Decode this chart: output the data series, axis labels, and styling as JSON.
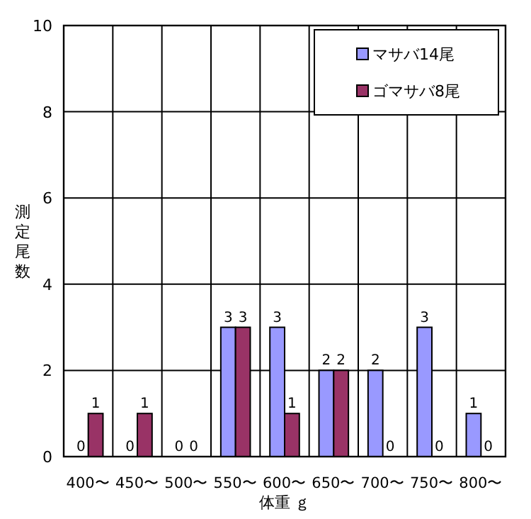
{
  "chart_data": {
    "type": "bar",
    "xlabel": "体重 ｇ",
    "ylabel": "測定尾数",
    "categories": [
      "400〜",
      "450〜",
      "500〜",
      "550〜",
      "600〜",
      "650〜",
      "700〜",
      "750〜",
      "800〜"
    ],
    "series": [
      {
        "name": "マサバ14尾",
        "color": "#9999ff",
        "values": [
          0,
          0,
          0,
          3,
          3,
          2,
          2,
          3,
          1
        ]
      },
      {
        "name": "ゴマサバ8尾",
        "color": "#993366",
        "values": [
          1,
          1,
          0,
          3,
          1,
          2,
          0,
          0,
          0
        ]
      }
    ],
    "ylim": [
      0,
      10
    ],
    "yticks": [
      0,
      2,
      4,
      6,
      8,
      10
    ],
    "grid": true,
    "legend": "top right",
    "data_labels": true
  }
}
